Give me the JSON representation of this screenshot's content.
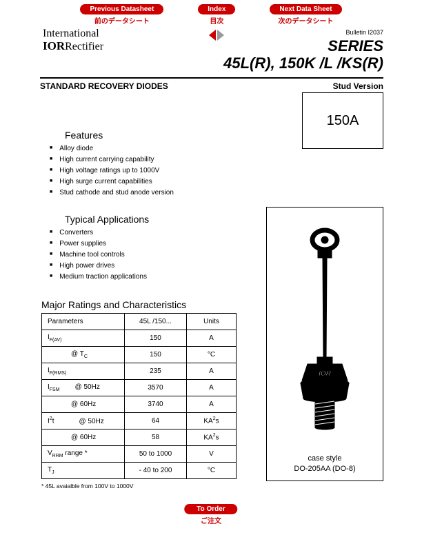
{
  "nav": {
    "prev": {
      "label": "Previous Datasheet",
      "sub": "前のデータシート"
    },
    "index": {
      "label": "Index",
      "sub": "目次"
    },
    "next": {
      "label": "Next Data Sheet",
      "sub": "次のデータシート"
    }
  },
  "bulletin": "Bulletin I2037",
  "logo": {
    "line1": "International",
    "line2_bold": "IOR",
    "line2_rest": "Rectifier"
  },
  "series": {
    "line1": "SERIES",
    "line2": "45L(R), 150K /L /KS(R)"
  },
  "subheader": {
    "left": "STANDARD RECOVERY DIODES",
    "right": "Stud Version"
  },
  "rating_box": "150A",
  "features": {
    "heading": "Features",
    "items": [
      "Alloy diode",
      "High current carrying capability",
      "High voltage ratings up to 1000V",
      "High surge current capabilities",
      "Stud cathode and stud anode version"
    ]
  },
  "applications": {
    "heading": "Typical Applications",
    "items": [
      "Converters",
      "Power supplies",
      "Machine tool controls",
      "High power drives",
      "Medium traction applications"
    ]
  },
  "case": {
    "line1": "case style",
    "line2": "DO-205AA (DO-8)",
    "ior": "IOR"
  },
  "ratings": {
    "heading": "Major Ratings and Characteristics",
    "columns": [
      "Parameters",
      "45L /150...",
      "Units"
    ],
    "rows": [
      {
        "param_html": "I<span class='sub'>F(AV)</span>",
        "val": "150",
        "unit": "A",
        "rowspan": 2,
        "subparam_html": "<span class='param-sub'>@ T<span class='sub'>C</span></span>",
        "subval": "150",
        "subunit": "°C"
      },
      {
        "param_html": "I<span class='sub'>F(RMS)</span>",
        "val": "235",
        "unit": "A"
      },
      {
        "param_html": "I<span class='sub'>FSM</span><span class='param-sub' style='padding-left:22px'>@ 50Hz</span>",
        "val": "3570",
        "unit": "A"
      },
      {
        "param_html": "<span class='param-sub'>@ 60Hz</span>",
        "val": "3740",
        "unit": "A"
      },
      {
        "param_html": "I<span class='sup'>2</span>t<span class='param-sub' style='padding-left:36px'>@ 50Hz</span>",
        "val": "64",
        "unit": "KA<span class='sup'>2</span>s"
      },
      {
        "param_html": "<span class='param-sub'>@ 60Hz</span>",
        "val": "58",
        "unit": "KA<span class='sup'>2</span>s"
      },
      {
        "param_html": "V<span class='sub'>RRM</span> range *",
        "val": "50 to 1000",
        "unit": "V"
      },
      {
        "param_html": "T<span class='sub'>J</span>",
        "val": "- 40 to 200",
        "unit": "°C"
      }
    ]
  },
  "footnote": "* 45L avaialble from 100V to 1000V",
  "order": {
    "label": "To Order",
    "sub": "ご注文"
  },
  "colors": {
    "accent": "#c00"
  }
}
